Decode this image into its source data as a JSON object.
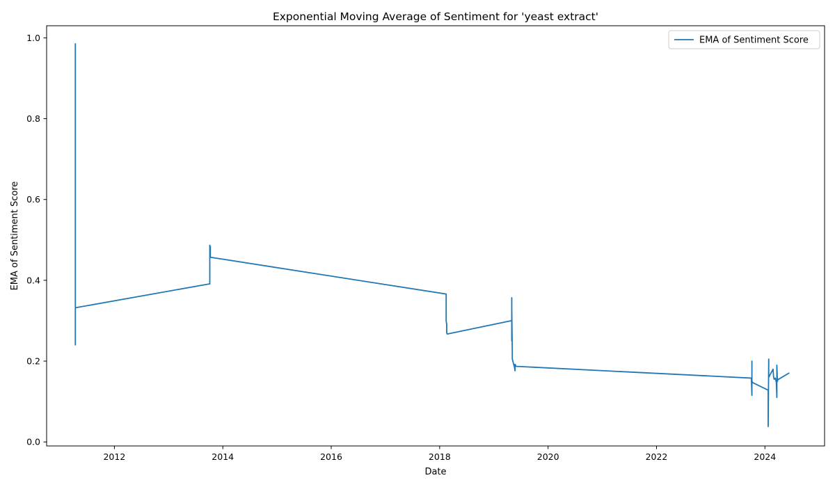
{
  "chart_data": {
    "type": "line",
    "title": "Exponential Moving Average of Sentiment for 'yeast extract'",
    "xlabel": "Date",
    "ylabel": "EMA of Sentiment Score",
    "xlim": [
      2010.75,
      2025.1
    ],
    "ylim": [
      -0.01,
      1.03
    ],
    "x_ticks": [
      2012,
      2014,
      2016,
      2018,
      2020,
      2022,
      2024
    ],
    "x_tick_labels": [
      "2012",
      "2014",
      "2016",
      "2018",
      "2020",
      "2022",
      "2024"
    ],
    "y_ticks": [
      0.0,
      0.2,
      0.4,
      0.6,
      0.8,
      1.0
    ],
    "y_tick_labels": [
      "0.0",
      "0.2",
      "0.4",
      "0.6",
      "0.8",
      "1.0"
    ],
    "grid": false,
    "legend_position": "top-right",
    "series": [
      {
        "name": "EMA of Sentiment Score",
        "color": "#1f77b4",
        "x": [
          2011.28,
          2011.28,
          2011.28,
          2011.28,
          2011.28,
          2013.75,
          2013.76,
          2013.76,
          2013.76,
          2013.77,
          2013.77,
          2018.12,
          2018.12,
          2018.13,
          2018.13,
          2018.14,
          2019.32,
          2019.33,
          2019.33,
          2019.33,
          2019.33,
          2019.34,
          2019.34,
          2019.35,
          2019.36,
          2019.37,
          2019.38,
          2019.39,
          2019.39,
          2019.4,
          2019.4,
          2019.41,
          2019.42,
          2023.74,
          2023.75,
          2023.76,
          2023.76,
          2023.76,
          2023.77,
          2023.77,
          2024.06,
          2024.06,
          2024.07,
          2024.07,
          2024.07,
          2024.08,
          2024.09,
          2024.11,
          2024.13,
          2024.15,
          2024.16,
          2024.17,
          2024.19,
          2024.21,
          2024.22,
          2024.22,
          2024.23,
          2024.24,
          2024.25,
          2024.44
        ],
        "values": [
          0.985,
          0.57,
          0.24,
          0.33,
          0.332,
          0.391,
          0.391,
          0.487,
          0.46,
          0.484,
          0.457,
          0.366,
          0.3,
          0.29,
          0.27,
          0.267,
          0.3,
          0.3,
          0.357,
          0.25,
          0.33,
          0.22,
          0.205,
          0.2,
          0.195,
          0.19,
          0.185,
          0.176,
          0.192,
          0.19,
          0.188,
          0.187,
          0.187,
          0.158,
          0.158,
          0.115,
          0.2,
          0.15,
          0.148,
          0.147,
          0.128,
          0.038,
          0.205,
          0.17,
          0.16,
          0.162,
          0.165,
          0.17,
          0.175,
          0.18,
          0.16,
          0.155,
          0.158,
          0.148,
          0.11,
          0.19,
          0.15,
          0.155,
          0.155,
          0.17
        ]
      }
    ]
  }
}
